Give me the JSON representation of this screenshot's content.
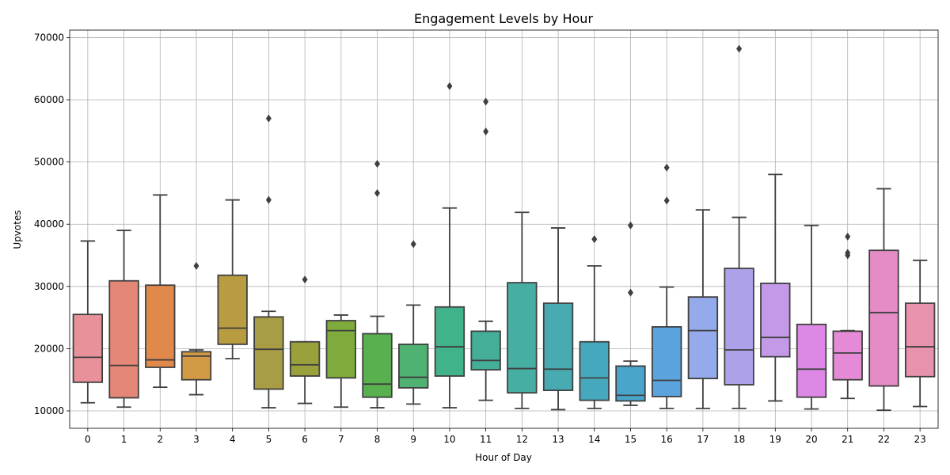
{
  "chart_data": {
    "type": "box",
    "title": "Engagement Levels by Hour",
    "xlabel": "Hour of Day",
    "ylabel": "Upvotes",
    "ylim": [
      7200,
      71200
    ],
    "yticks": [
      10000,
      20000,
      30000,
      40000,
      50000,
      60000,
      70000
    ],
    "grid": true,
    "categories": [
      "0",
      "1",
      "2",
      "3",
      "4",
      "5",
      "6",
      "7",
      "8",
      "9",
      "10",
      "11",
      "12",
      "13",
      "14",
      "15",
      "16",
      "17",
      "18",
      "19",
      "20",
      "21",
      "22",
      "23"
    ],
    "boxes": [
      {
        "category": "0",
        "color": "#e8919a",
        "whisker_low": 11300,
        "q1": 14600,
        "median": 18600,
        "q3": 25500,
        "whisker_high": 37300,
        "outliers": []
      },
      {
        "category": "1",
        "color": "#e58776",
        "whisker_low": 10600,
        "q1": 12100,
        "median": 17300,
        "q3": 30900,
        "whisker_high": 39000,
        "outliers": []
      },
      {
        "category": "2",
        "color": "#e0894a",
        "whisker_low": 13800,
        "q1": 17000,
        "median": 18200,
        "q3": 30200,
        "whisker_high": 44700,
        "outliers": []
      },
      {
        "category": "3",
        "color": "#d39a45",
        "whisker_low": 12600,
        "q1": 15000,
        "median": 18800,
        "q3": 19500,
        "whisker_high": 19800,
        "outliers": [
          33300
        ]
      },
      {
        "category": "4",
        "color": "#b99b41",
        "whisker_low": 18400,
        "q1": 20700,
        "median": 23300,
        "q3": 31800,
        "whisker_high": 43900,
        "outliers": []
      },
      {
        "category": "5",
        "color": "#a89c44",
        "whisker_low": 10500,
        "q1": 13500,
        "median": 19900,
        "q3": 25100,
        "whisker_high": 26000,
        "outliers": [
          43900,
          57000
        ]
      },
      {
        "category": "6",
        "color": "#9aa13b",
        "whisker_low": 11200,
        "q1": 15600,
        "median": 17400,
        "q3": 21100,
        "whisker_high": 21100,
        "outliers": [
          31100
        ]
      },
      {
        "category": "7",
        "color": "#7faa3c",
        "whisker_low": 10600,
        "q1": 15300,
        "median": 22900,
        "q3": 24500,
        "whisker_high": 25400,
        "outliers": []
      },
      {
        "category": "8",
        "color": "#58b04e",
        "whisker_low": 10500,
        "q1": 12200,
        "median": 14300,
        "q3": 22400,
        "whisker_high": 25200,
        "outliers": [
          45000,
          49700
        ]
      },
      {
        "category": "9",
        "color": "#4fb272",
        "whisker_low": 11100,
        "q1": 13700,
        "median": 15400,
        "q3": 20700,
        "whisker_high": 27000,
        "outliers": [
          36800
        ]
      },
      {
        "category": "10",
        "color": "#42b28a",
        "whisker_low": 10500,
        "q1": 15600,
        "median": 20300,
        "q3": 26700,
        "whisker_high": 42600,
        "outliers": [
          62200
        ]
      },
      {
        "category": "11",
        "color": "#44ae98",
        "whisker_low": 11700,
        "q1": 16600,
        "median": 18100,
        "q3": 22800,
        "whisker_high": 24400,
        "outliers": [
          54900,
          59700
        ]
      },
      {
        "category": "12",
        "color": "#47aea4",
        "whisker_low": 10400,
        "q1": 12900,
        "median": 16800,
        "q3": 30600,
        "whisker_high": 41900,
        "outliers": []
      },
      {
        "category": "13",
        "color": "#48abb1",
        "whisker_low": 10200,
        "q1": 13300,
        "median": 16700,
        "q3": 27300,
        "whisker_high": 39400,
        "outliers": []
      },
      {
        "category": "14",
        "color": "#46a8bd",
        "whisker_low": 10400,
        "q1": 11700,
        "median": 15300,
        "q3": 21100,
        "whisker_high": 33300,
        "outliers": [
          37600
        ]
      },
      {
        "category": "15",
        "color": "#4aa5cc",
        "whisker_low": 10900,
        "q1": 11600,
        "median": 12500,
        "q3": 17200,
        "whisker_high": 18000,
        "outliers": [
          29000,
          39800
        ]
      },
      {
        "category": "16",
        "color": "#5ba3dd",
        "whisker_low": 10400,
        "q1": 12300,
        "median": 14900,
        "q3": 23500,
        "whisker_high": 29900,
        "outliers": [
          43800,
          49100
        ]
      },
      {
        "category": "17",
        "color": "#94aaea",
        "whisker_low": 10400,
        "q1": 15200,
        "median": 22900,
        "q3": 28300,
        "whisker_high": 42300,
        "outliers": []
      },
      {
        "category": "18",
        "color": "#ada2ea",
        "whisker_low": 10400,
        "q1": 14200,
        "median": 19800,
        "q3": 32900,
        "whisker_high": 41100,
        "outliers": [
          68200
        ]
      },
      {
        "category": "19",
        "color": "#c49ae8",
        "whisker_low": 11600,
        "q1": 18700,
        "median": 21800,
        "q3": 30500,
        "whisker_high": 48000,
        "outliers": []
      },
      {
        "category": "20",
        "color": "#dd88e4",
        "whisker_low": 10300,
        "q1": 12200,
        "median": 16700,
        "q3": 23900,
        "whisker_high": 39800,
        "outliers": []
      },
      {
        "category": "21",
        "color": "#e58ad6",
        "whisker_low": 12000,
        "q1": 15000,
        "median": 19300,
        "q3": 22800,
        "whisker_high": 22900,
        "outliers": [
          35000,
          35400,
          38000
        ]
      },
      {
        "category": "22",
        "color": "#e58bc5",
        "whisker_low": 10100,
        "q1": 14000,
        "median": 25800,
        "q3": 35800,
        "whisker_high": 45700,
        "outliers": []
      },
      {
        "category": "23",
        "color": "#e892ae",
        "whisker_low": 10700,
        "q1": 15500,
        "median": 20300,
        "q3": 27300,
        "whisker_high": 34200,
        "outliers": []
      }
    ]
  }
}
